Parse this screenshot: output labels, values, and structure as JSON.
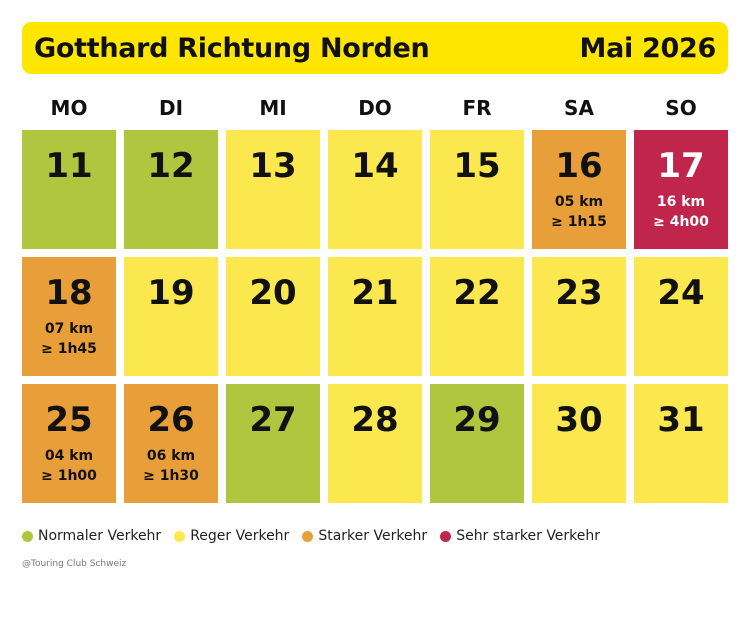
{
  "header": {
    "title": "Gotthard Richtung Norden",
    "month": "Mai 2026"
  },
  "colors": {
    "header_bg": "#ffe600",
    "normal": "#b0c63e",
    "reger": "#fbe84f",
    "starker": "#e89f3a",
    "sehr_starker": "#c0264b"
  },
  "weekdays": [
    "MO",
    "DI",
    "MI",
    "DO",
    "FR",
    "SA",
    "SO"
  ],
  "weeks": [
    [
      {
        "day": "11",
        "level": "normal",
        "distance": "",
        "duration": ""
      },
      {
        "day": "12",
        "level": "normal",
        "distance": "",
        "duration": ""
      },
      {
        "day": "13",
        "level": "reger",
        "distance": "",
        "duration": ""
      },
      {
        "day": "14",
        "level": "reger",
        "distance": "",
        "duration": ""
      },
      {
        "day": "15",
        "level": "reger",
        "distance": "",
        "duration": ""
      },
      {
        "day": "16",
        "level": "starker",
        "distance": "05 km",
        "duration": "≥ 1h15"
      },
      {
        "day": "17",
        "level": "sehr_starker",
        "distance": "16 km",
        "duration": "≥ 4h00"
      }
    ],
    [
      {
        "day": "18",
        "level": "starker",
        "distance": "07 km",
        "duration": "≥ 1h45"
      },
      {
        "day": "19",
        "level": "reger",
        "distance": "",
        "duration": ""
      },
      {
        "day": "20",
        "level": "reger",
        "distance": "",
        "duration": ""
      },
      {
        "day": "21",
        "level": "reger",
        "distance": "",
        "duration": ""
      },
      {
        "day": "22",
        "level": "reger",
        "distance": "",
        "duration": ""
      },
      {
        "day": "23",
        "level": "reger",
        "distance": "",
        "duration": ""
      },
      {
        "day": "24",
        "level": "reger",
        "distance": "",
        "duration": ""
      }
    ],
    [
      {
        "day": "25",
        "level": "starker",
        "distance": "04 km",
        "duration": "≥ 1h00"
      },
      {
        "day": "26",
        "level": "starker",
        "distance": "06 km",
        "duration": "≥ 1h30"
      },
      {
        "day": "27",
        "level": "normal",
        "distance": "",
        "duration": ""
      },
      {
        "day": "28",
        "level": "reger",
        "distance": "",
        "duration": ""
      },
      {
        "day": "29",
        "level": "normal",
        "distance": "",
        "duration": ""
      },
      {
        "day": "30",
        "level": "reger",
        "distance": "",
        "duration": ""
      },
      {
        "day": "31",
        "level": "reger",
        "distance": "",
        "duration": ""
      }
    ]
  ],
  "legend": [
    {
      "level": "normal",
      "label": "Normaler Verkehr"
    },
    {
      "level": "reger",
      "label": "Reger Verkehr"
    },
    {
      "level": "starker",
      "label": "Starker Verkehr"
    },
    {
      "level": "sehr_starker",
      "label": "Sehr starker Verkehr"
    }
  ],
  "copyright": "@Touring Club Schweiz"
}
